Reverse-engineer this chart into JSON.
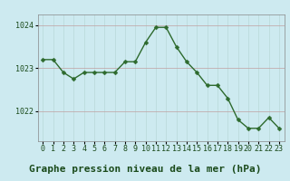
{
  "hours": [
    0,
    1,
    2,
    3,
    4,
    5,
    6,
    7,
    8,
    9,
    10,
    11,
    12,
    13,
    14,
    15,
    16,
    17,
    18,
    19,
    20,
    21,
    22,
    23
  ],
  "pressure": [
    1023.2,
    1023.2,
    1022.9,
    1022.75,
    1022.9,
    1022.9,
    1022.9,
    1022.9,
    1023.15,
    1023.15,
    1023.6,
    1023.95,
    1023.95,
    1023.5,
    1023.15,
    1022.9,
    1022.6,
    1022.6,
    1022.3,
    1021.8,
    1021.6,
    1021.6,
    1021.85,
    1021.6
  ],
  "line_color": "#2d6a2d",
  "marker_color": "#2d6a2d",
  "bg_color": "#cdeaf0",
  "grid_color_v": "#b8d8d8",
  "grid_color_h": "#c0a0a0",
  "title": "Graphe pression niveau de la mer (hPa)",
  "ylim_min": 1021.3,
  "ylim_max": 1024.25,
  "yticks": [
    1022.0,
    1023.0,
    1024.0
  ],
  "title_fontsize": 8,
  "tick_fontsize": 6,
  "line_color_dark": "#1a4a1a",
  "spine_color": "#888888"
}
